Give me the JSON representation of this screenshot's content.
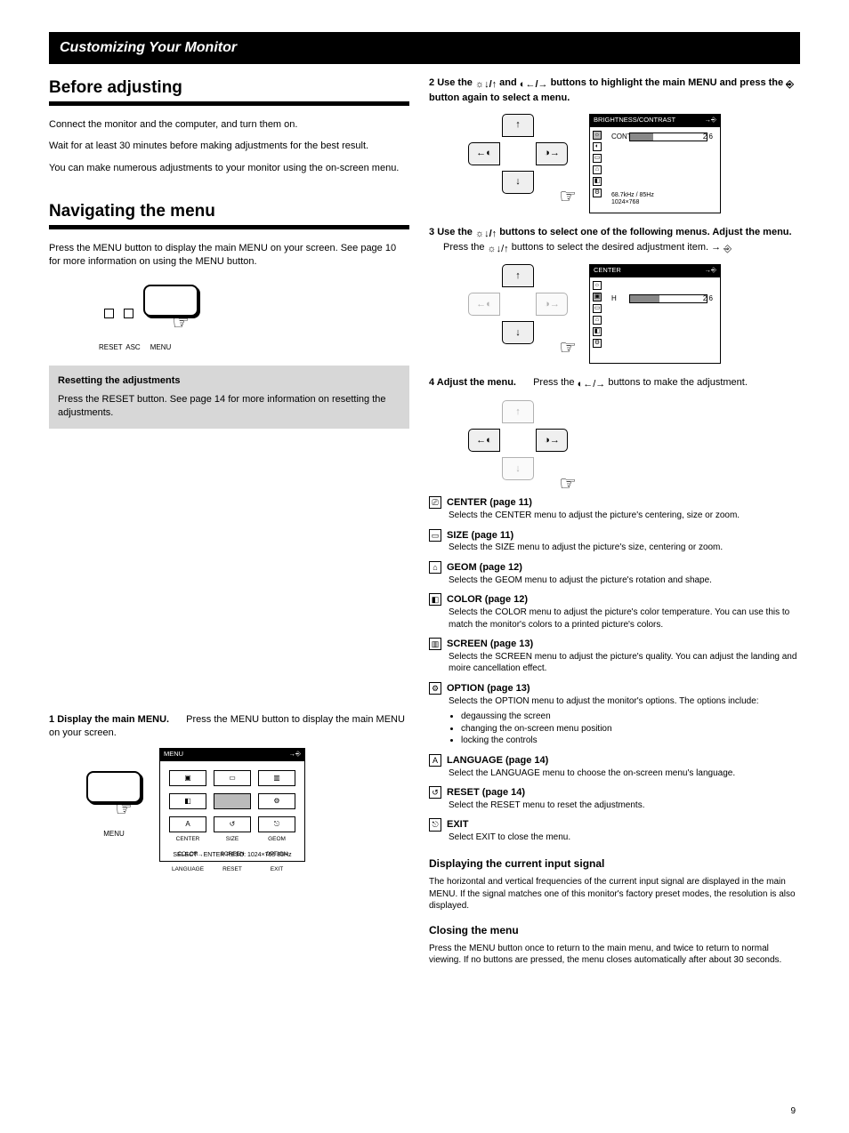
{
  "page": {
    "number": "9",
    "header_en": "Customizing Your Monitor"
  },
  "left": {
    "title": "Before adjusting",
    "p1": "Connect the monitor and the computer, and turn them on.",
    "p2": "Wait for at least 30 minutes before making adjustments for the best result.",
    "p3": "You can make numerous adjustments to your monitor using the on-screen menu.",
    "nav_title": "Navigating the menu",
    "nav_p1": "Press the MENU button to display the main MENU on your screen. See page 10 for more information on using the MENU button.",
    "gray_title": "Resetting the adjustments",
    "gray_body": "Press the RESET button. See page 14 for more information on resetting the adjustments.",
    "reset_label": "RESET",
    "menu_label": "MENU",
    "asv_label": "ASC"
  },
  "right": {
    "step2a": "Use the ",
    "step2b": " buttons to select one of the following menus.",
    "step3a": "Use the ",
    "step3b": " buttons to highlight the main MENU and press the ",
    "step3c": " button again to select a menu.",
    "step2_menus": [
      {
        "sym": "⎚",
        "label": "CENTER (page 11)",
        "desc": "Selects the CENTER menu to adjust the picture's centering, size or zoom."
      },
      {
        "sym": "▭",
        "label": "SIZE (page 11)",
        "desc": "Selects the SIZE menu to adjust the picture's size, centering or zoom."
      },
      {
        "sym": "⌂",
        "label": "GEOM (page 12)",
        "desc": "Selects the GEOM menu to adjust the picture's rotation and shape."
      },
      {
        "sym": "◧",
        "label": "COLOR (page 12)",
        "desc": "Selects the COLOR menu to adjust the picture's color temperature. You can use this to match the monitor's colors to a printed picture's colors."
      },
      {
        "sym": "▥",
        "label": "SCREEN (page 13)",
        "desc": "Selects the SCREEN menu to adjust the picture's quality. You can adjust the landing and moire cancellation effect."
      },
      {
        "sym": "⚙",
        "label": "OPTION (page 13)",
        "desc": "Selects the OPTION menu to adjust the monitor's options. The options include:",
        "bullets": [
          "degaussing the screen",
          "changing the on-screen menu position",
          "locking the controls"
        ]
      },
      {
        "sym": "A",
        "label": "LANGUAGE (page 14)",
        "desc": "Select the LANGUAGE menu to choose the on-screen menu's language."
      },
      {
        "sym": "↺",
        "label": "RESET (page 14)",
        "desc": "Select the RESET menu to reset the adjustments."
      },
      {
        "sym": "⎋",
        "label": "EXIT",
        "desc": "Select EXIT to close the menu."
      }
    ],
    "signals_title": "Displaying the current input signal",
    "signals_body": "The horizontal and vertical frequencies of the current input signal are displayed in the main MENU. If the signal matches one of this monitor's factory preset modes, the resolution is also displayed.",
    "close_title": "Closing the menu",
    "close_body1": "Press the MENU button once to return to the main menu, and twice to return to normal viewing. If no buttons are pressed, the menu closes automatically after about 30 seconds.",
    "step4": "Adjust the menu.",
    "step4b": " buttons to make the adjustment.",
    "step1": "Display the main MENU.",
    "step1b": "Press the MENU button to display the main MENU on your screen.",
    "osd1": {
      "title": "BRIGHTNESS/CONTRAST",
      "val": "2 6",
      "row": "CONTRAST",
      "freq": "68.7kHz / 85Hz",
      "res": "1024×768",
      "close": ""
    },
    "osd2": {
      "title": "CENTER",
      "row": "H",
      "val": "2 6",
      "close": ""
    },
    "menu_osd": {
      "title": "MENU",
      "labels": [
        "CENTER",
        "SIZE",
        "GEOM",
        "COLOR",
        "SCREEN",
        "OPTION",
        "LANGUAGE",
        "RESET",
        "EXIT"
      ],
      "close": "SELECT→ENTER   RESO: 1024×768   85Hz"
    }
  }
}
